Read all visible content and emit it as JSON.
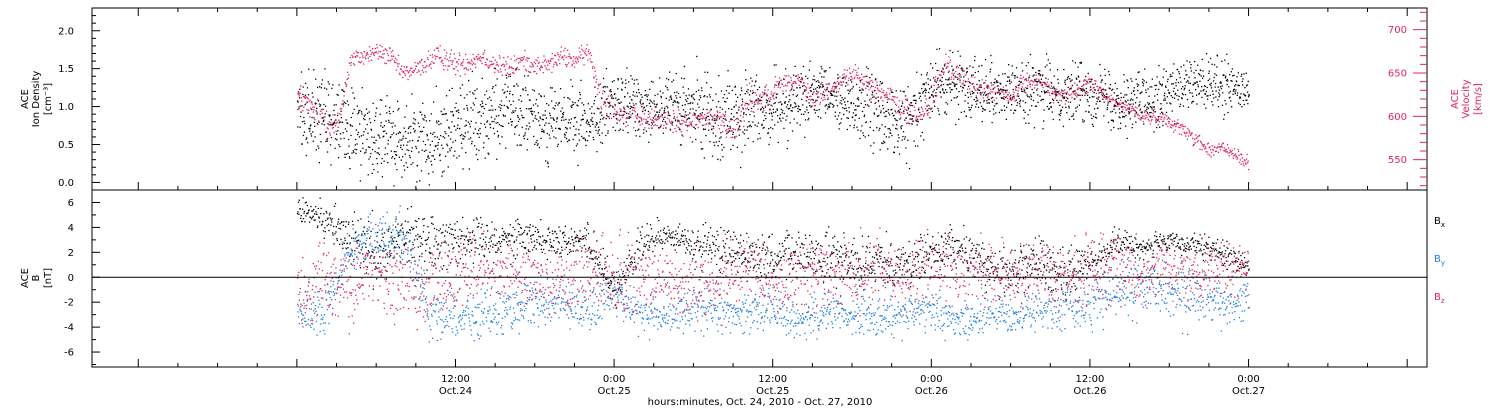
{
  "colors": {
    "black": "#000000",
    "pink": "#e0245e",
    "blue": "#1e7fe0",
    "axis": "#000000"
  },
  "x_axis": {
    "title": "hours:minutes, Oct. 24, 2010 - Oct. 27, 2010",
    "range_hours": [
      -15.5,
      85.5
    ],
    "ticks": [
      {
        "hour": 12,
        "time": "12:00",
        "date": "Oct.24"
      },
      {
        "hour": 24,
        "time": "0:00",
        "date": "Oct.25"
      },
      {
        "hour": 36,
        "time": "12:00",
        "date": "Oct.25"
      },
      {
        "hour": 48,
        "time": "0:00",
        "date": "Oct.26"
      },
      {
        "hour": 60,
        "time": "12:00",
        "date": "Oct.26"
      },
      {
        "hour": 72,
        "time": "0:00",
        "date": "Oct.27"
      }
    ]
  },
  "panel1": {
    "left_label": {
      "line1": "ACE",
      "line2": "Ion Density",
      "line3": "[cm⁻³]"
    },
    "right_label": {
      "line1": "ACE",
      "line2": "Velocity",
      "line3": "[km/s]"
    }
  },
  "panel2": {
    "left_label": {
      "line1": "ACE",
      "line2": "B",
      "line3": "[nT]"
    },
    "legend": [
      {
        "base": "B",
        "sub": "x",
        "color": "#000000"
      },
      {
        "base": "B",
        "sub": "y",
        "color": "#1e7fe0"
      },
      {
        "base": "B",
        "sub": "z",
        "color": "#e0245e"
      }
    ]
  },
  "chart_data": [
    {
      "type": "scatter",
      "title": "",
      "xlabel": "hours:minutes, Oct. 24, 2010 - Oct. 27, 2010",
      "ylabel": "ACE Ion Density [cm⁻³]",
      "ylim": [
        -0.1,
        2.3
      ],
      "y_ticks": [
        0.0,
        0.5,
        1.0,
        1.5,
        2.0
      ],
      "y2label": "ACE Velocity [km/s]",
      "y2lim": [
        515,
        725
      ],
      "y2_ticks": [
        550,
        600,
        650,
        700
      ],
      "series": [
        {
          "name": "Ion Density",
          "color": "#000000",
          "axis": "left",
          "style": "dots",
          "x": [
            0,
            2,
            4,
            6,
            8,
            10,
            12,
            14,
            16,
            18,
            20,
            22,
            24,
            26,
            28,
            30,
            32,
            34,
            36,
            38,
            40,
            42,
            44,
            46,
            48,
            50,
            52,
            54,
            56,
            58,
            60,
            62,
            64,
            66,
            68,
            70,
            72
          ],
          "y": [
            1.0,
            0.85,
            0.75,
            0.6,
            0.55,
            0.6,
            0.75,
            0.9,
            0.95,
            0.85,
            0.8,
            0.8,
            1.0,
            1.05,
            1.0,
            0.95,
            0.9,
            0.9,
            1.0,
            1.1,
            1.15,
            1.05,
            0.9,
            0.75,
            1.25,
            1.3,
            1.25,
            1.2,
            1.2,
            1.2,
            1.2,
            1.1,
            1.1,
            1.2,
            1.3,
            1.25,
            1.2
          ],
          "spread": [
            0.55,
            0.6,
            0.65,
            0.6,
            0.55,
            0.6,
            0.65,
            0.6,
            0.55,
            0.55,
            0.55,
            0.5,
            0.5,
            0.5,
            0.5,
            0.55,
            0.6,
            0.6,
            0.5,
            0.45,
            0.45,
            0.5,
            0.55,
            0.55,
            0.45,
            0.45,
            0.45,
            0.4,
            0.45,
            0.45,
            0.4,
            0.45,
            0.45,
            0.4,
            0.4,
            0.4,
            0.35
          ]
        },
        {
          "name": "Velocity",
          "color": "#e0245e",
          "axis": "right",
          "style": "dots",
          "x": [
            0,
            1,
            2,
            3,
            4,
            5,
            6,
            7,
            8,
            9,
            10,
            11,
            12,
            13,
            14,
            15,
            16,
            17,
            18,
            19,
            20,
            21,
            22,
            23,
            24,
            25,
            26,
            27,
            28,
            29,
            30,
            31,
            32,
            33,
            34,
            35,
            36,
            37,
            38,
            39,
            40,
            41,
            42,
            43,
            44,
            45,
            46,
            47,
            48,
            49,
            50,
            51,
            52,
            53,
            54,
            55,
            56,
            57,
            58,
            59,
            60,
            61,
            62,
            63,
            64,
            65,
            66,
            67,
            68,
            69,
            70,
            71,
            72
          ],
          "y": [
            625,
            610,
            600,
            585,
            665,
            670,
            675,
            670,
            650,
            655,
            665,
            670,
            660,
            665,
            670,
            660,
            655,
            665,
            660,
            660,
            670,
            665,
            675,
            625,
            610,
            600,
            600,
            595,
            600,
            590,
            595,
            600,
            595,
            585,
            620,
            620,
            630,
            640,
            640,
            620,
            630,
            640,
            650,
            640,
            630,
            620,
            605,
            600,
            620,
            660,
            650,
            635,
            630,
            630,
            620,
            640,
            645,
            630,
            625,
            630,
            640,
            625,
            615,
            610,
            600,
            600,
            595,
            585,
            575,
            560,
            565,
            555,
            545
          ],
          "spread": [
            20,
            15,
            20,
            20,
            12,
            12,
            12,
            12,
            12,
            10,
            15,
            15,
            15,
            15,
            12,
            15,
            15,
            12,
            12,
            12,
            12,
            12,
            12,
            20,
            15,
            15,
            15,
            15,
            15,
            15,
            15,
            15,
            15,
            20,
            25,
            20,
            15,
            15,
            15,
            15,
            15,
            12,
            12,
            12,
            15,
            15,
            15,
            20,
            20,
            15,
            15,
            15,
            15,
            12,
            12,
            12,
            12,
            12,
            12,
            12,
            10,
            10,
            8,
            8,
            8,
            8,
            8,
            10,
            10,
            10,
            10,
            10,
            10
          ]
        }
      ]
    },
    {
      "type": "scatter",
      "title": "",
      "xlabel": "hours:minutes, Oct. 24, 2010 - Oct. 27, 2010",
      "ylabel": "ACE B [nT]",
      "ylim": [
        -7.2,
        7.0
      ],
      "y_ticks": [
        -6,
        -4,
        -2,
        0,
        2,
        4,
        6
      ],
      "zero_line": true,
      "series": [
        {
          "name": "Bx",
          "color": "#000000",
          "style": "dots",
          "x": [
            0,
            2,
            4,
            6,
            8,
            10,
            12,
            14,
            16,
            18,
            20,
            22,
            24,
            26,
            28,
            30,
            32,
            34,
            36,
            38,
            40,
            42,
            44,
            46,
            48,
            50,
            52,
            54,
            56,
            58,
            60,
            62,
            64,
            66,
            68,
            70,
            72
          ],
          "y": [
            5.3,
            4.8,
            3.0,
            2.0,
            3.5,
            3.0,
            3.2,
            3.0,
            3.3,
            3.2,
            3.0,
            3.0,
            -1.0,
            2.5,
            3.5,
            2.5,
            2.5,
            2.0,
            1.5,
            2.0,
            1.5,
            1.5,
            1.5,
            1.0,
            2.0,
            2.5,
            1.0,
            0.5,
            1.5,
            0.0,
            1.5,
            2.8,
            2.5,
            2.8,
            2.5,
            2.0,
            0.8
          ],
          "spread": [
            1.0,
            1.5,
            2.5,
            2.8,
            2.0,
            2.5,
            2.2,
            2.0,
            1.8,
            1.5,
            1.5,
            1.5,
            1.5,
            1.8,
            1.2,
            1.8,
            2.0,
            2.0,
            2.0,
            2.0,
            2.2,
            2.2,
            2.2,
            2.2,
            1.8,
            1.8,
            2.0,
            2.2,
            2.0,
            2.2,
            1.8,
            1.2,
            1.0,
            1.0,
            1.0,
            1.2,
            1.0
          ]
        },
        {
          "name": "By",
          "color": "#1e7fe0",
          "style": "dots",
          "x": [
            0,
            2,
            4,
            6,
            8,
            10,
            12,
            14,
            16,
            18,
            20,
            22,
            24,
            26,
            28,
            30,
            32,
            34,
            36,
            38,
            40,
            42,
            44,
            46,
            48,
            50,
            52,
            54,
            56,
            58,
            60,
            62,
            64,
            66,
            68,
            70,
            72
          ],
          "y": [
            -2.5,
            -3.0,
            2.5,
            3.0,
            3.5,
            -2.5,
            -3.0,
            -3.0,
            -2.5,
            -2.0,
            -2.0,
            -2.5,
            -1.0,
            -3.0,
            -3.0,
            -2.5,
            -2.5,
            -3.0,
            -2.5,
            -3.5,
            -2.5,
            -3.0,
            -3.0,
            -3.0,
            -2.5,
            -3.5,
            -3.0,
            -3.0,
            -2.5,
            -2.5,
            -2.0,
            -1.0,
            -0.5,
            -1.0,
            -1.5,
            -2.0,
            -1.5
          ],
          "spread": [
            2.0,
            2.0,
            2.0,
            2.0,
            2.5,
            2.5,
            2.2,
            2.0,
            2.0,
            2.0,
            2.0,
            1.8,
            2.0,
            1.8,
            1.8,
            2.0,
            2.0,
            2.0,
            2.0,
            1.5,
            2.0,
            1.8,
            1.8,
            1.8,
            2.0,
            1.5,
            1.8,
            1.8,
            2.0,
            2.0,
            2.0,
            2.5,
            2.5,
            2.5,
            2.5,
            2.2,
            2.0
          ]
        },
        {
          "name": "Bz",
          "color": "#e0245e",
          "style": "dots",
          "x": [
            0,
            2,
            4,
            6,
            8,
            10,
            12,
            14,
            16,
            18,
            20,
            22,
            24,
            26,
            28,
            30,
            32,
            34,
            36,
            38,
            40,
            42,
            44,
            46,
            48,
            50,
            52,
            54,
            56,
            58,
            60,
            62,
            64,
            66,
            68,
            70,
            72
          ],
          "y": [
            -2.0,
            0.5,
            -1.0,
            1.0,
            -0.5,
            -1.0,
            0.5,
            1.0,
            0.5,
            0.0,
            0.0,
            0.5,
            0.0,
            -0.5,
            0.0,
            -0.5,
            0.0,
            0.5,
            -0.5,
            0.0,
            0.5,
            0.0,
            0.5,
            0.0,
            1.0,
            0.5,
            0.5,
            0.0,
            0.5,
            0.0,
            0.5,
            1.0,
            0.5,
            1.0,
            0.5,
            0.5,
            0.5
          ],
          "spread": [
            3.5,
            3.0,
            3.5,
            3.0,
            3.5,
            4.0,
            3.5,
            3.0,
            3.0,
            3.0,
            3.0,
            3.0,
            3.5,
            3.5,
            3.0,
            3.0,
            3.0,
            3.0,
            3.0,
            3.0,
            3.0,
            3.0,
            3.0,
            3.0,
            3.0,
            3.0,
            3.0,
            3.0,
            3.0,
            3.0,
            3.0,
            3.0,
            2.5,
            2.5,
            2.5,
            2.5,
            2.5
          ]
        }
      ]
    }
  ]
}
